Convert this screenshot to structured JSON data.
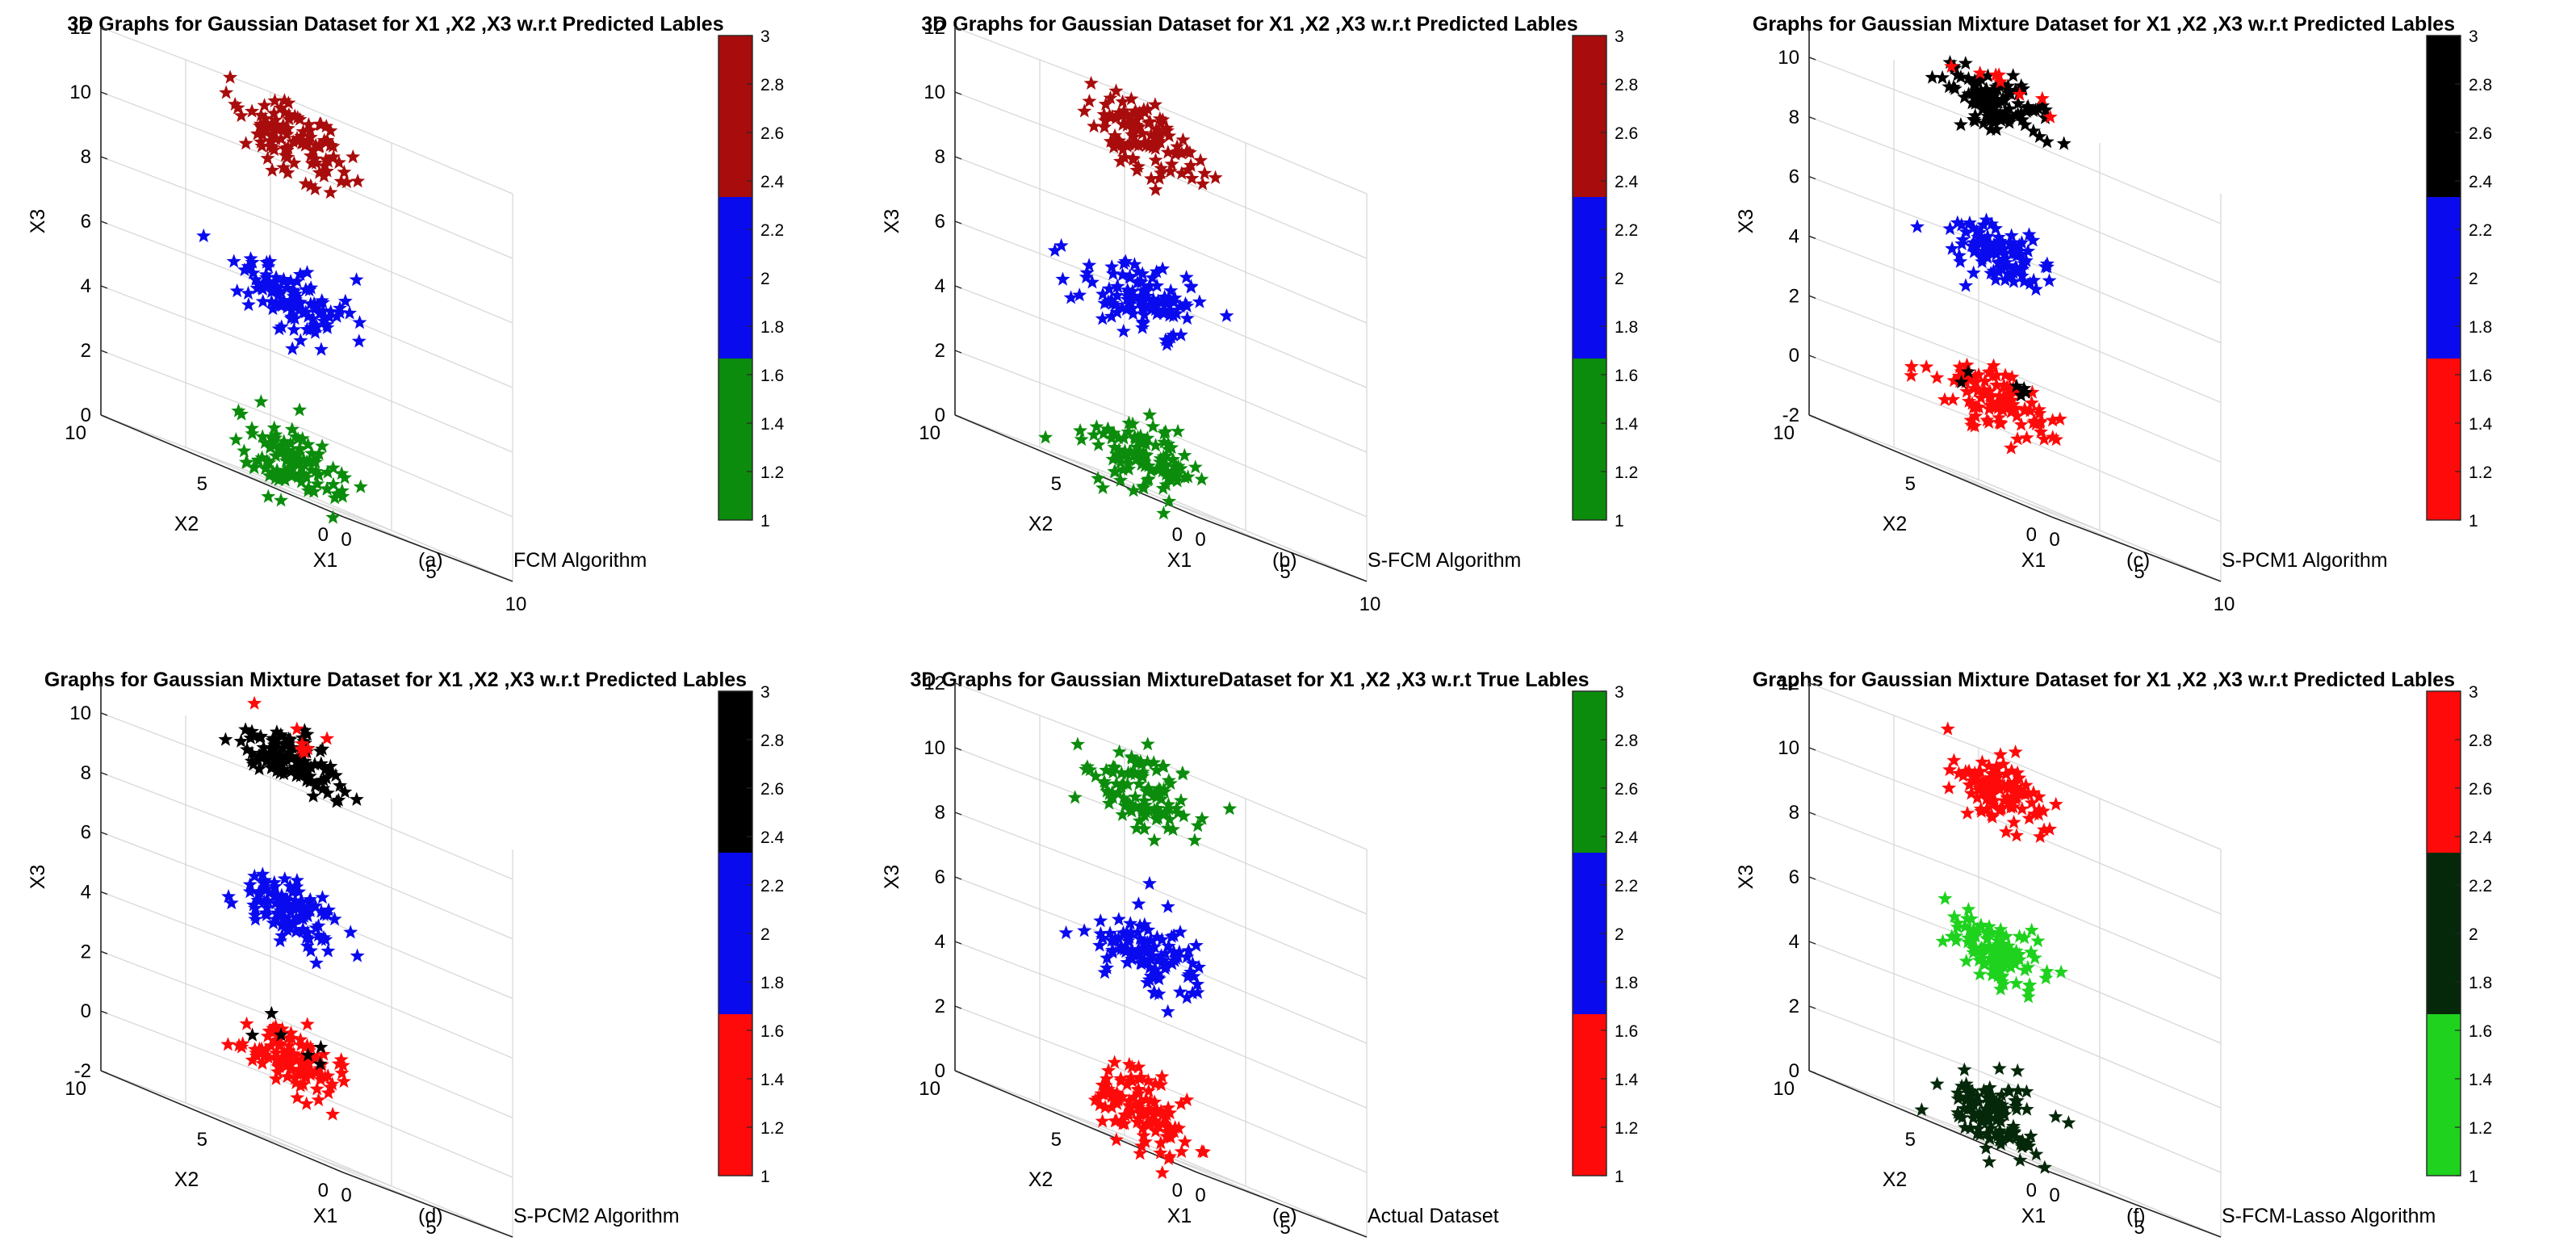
{
  "colors": {
    "green": "#0c8c0c",
    "blue": "#0a0aee",
    "darkred": "#a80c0c",
    "red": "#ff0a0a",
    "black": "#000000",
    "lime": "#1ed21e",
    "darkgreen": "#06280a"
  },
  "chart_data": [
    {
      "type": "scatter3d",
      "title": "3D Graphs for Gaussian Dataset for X1 ,X2 ,X3 w.r.t Predicted Lables",
      "caption": {
        "letter": "(a)",
        "text": "FCM    Algorithm"
      },
      "xlabel": "X1",
      "ylabel": "X2",
      "zlabel": "X3",
      "x_ticks": [
        "0",
        "5",
        "10"
      ],
      "y_ticks": [
        "0",
        "5",
        "10"
      ],
      "zlim": [
        0,
        12
      ],
      "z_ticks": [
        "0",
        "2",
        "4",
        "6",
        "8",
        "10",
        "12"
      ],
      "clusters": [
        {
          "label": 1,
          "color": "#0c8c0c",
          "center": [
            4,
            5,
            1
          ],
          "spread": [
            0.9,
            0.9,
            0.55
          ],
          "extras": []
        },
        {
          "label": 2,
          "color": "#0a0aee",
          "center": [
            4,
            5,
            6
          ],
          "spread": [
            0.9,
            0.9,
            0.55
          ],
          "extras": []
        },
        {
          "label": 3,
          "color": "#a80c0c",
          "center": [
            4,
            5,
            11
          ],
          "spread": [
            0.9,
            0.9,
            0.55
          ],
          "extras": []
        }
      ],
      "colorbar": {
        "segments": [
          "#0c8c0c",
          "#0a0aee",
          "#a80c0c"
        ],
        "ticks": [
          "1",
          "1.2",
          "1.4",
          "1.6",
          "1.8",
          "2",
          "2.2",
          "2.4",
          "2.6",
          "2.8",
          "3"
        ]
      }
    },
    {
      "type": "scatter3d",
      "title": "3D Graphs for Gaussian Dataset for X1 ,X2 ,X3 w.r.t Predicted Lables",
      "caption": {
        "letter": "(b)",
        "text": "S-FCM    Algorithm"
      },
      "xlabel": "X1",
      "ylabel": "X2",
      "zlabel": "X3",
      "x_ticks": [
        "0",
        "5",
        "10"
      ],
      "y_ticks": [
        "0",
        "5",
        "10"
      ],
      "zlim": [
        0,
        12
      ],
      "z_ticks": [
        "0",
        "2",
        "4",
        "6",
        "8",
        "10",
        "12"
      ],
      "clusters": [
        {
          "label": 1,
          "color": "#0c8c0c",
          "center": [
            4,
            5,
            1
          ],
          "spread": [
            0.9,
            0.9,
            0.55
          ],
          "extras": []
        },
        {
          "label": 2,
          "color": "#0a0aee",
          "center": [
            4,
            5,
            6
          ],
          "spread": [
            0.9,
            0.9,
            0.55
          ],
          "extras": []
        },
        {
          "label": 3,
          "color": "#a80c0c",
          "center": [
            4,
            5,
            11
          ],
          "spread": [
            0.9,
            0.9,
            0.55
          ],
          "extras": []
        }
      ],
      "colorbar": {
        "segments": [
          "#0c8c0c",
          "#0a0aee",
          "#a80c0c"
        ],
        "ticks": [
          "1",
          "1.2",
          "1.4",
          "1.6",
          "1.8",
          "2",
          "2.2",
          "2.4",
          "2.6",
          "2.8",
          "3"
        ]
      }
    },
    {
      "type": "scatter3d",
      "title": "Graphs for Gaussian Mixture Dataset for X1 ,X2 ,X3 w.r.t Predicted Lables",
      "caption": {
        "letter": "(c)",
        "text": "S-PCM1 Algorithm"
      },
      "xlabel": "X1",
      "ylabel": "X2",
      "zlabel": "X3",
      "x_ticks": [
        "0",
        "5",
        "10"
      ],
      "y_ticks": [
        "0",
        "5",
        "10"
      ],
      "zlim": [
        -2,
        11
      ],
      "z_ticks": [
        "-2",
        "0",
        "2",
        "4",
        "6",
        "8",
        "10"
      ],
      "clusters": [
        {
          "label": 1,
          "color": "#ff0a0a",
          "center": [
            4,
            5,
            1
          ],
          "spread": [
            0.9,
            0.9,
            0.5
          ],
          "extras": [
            {
              "color": "#000000",
              "count": 6,
              "dz": 0.6
            }
          ]
        },
        {
          "label": 2,
          "color": "#0a0aee",
          "center": [
            4,
            5,
            6
          ],
          "spread": [
            0.8,
            0.8,
            0.5
          ],
          "extras": []
        },
        {
          "label": 3,
          "color": "#000000",
          "center": [
            4,
            5,
            11
          ],
          "spread": [
            0.9,
            0.9,
            0.45
          ],
          "extras": [
            {
              "color": "#ff0a0a",
              "count": 8,
              "dz": 0.7
            }
          ]
        }
      ],
      "colorbar": {
        "segments": [
          "#ff0a0a",
          "#0a0aee",
          "#000000"
        ],
        "ticks": [
          "1",
          "1.2",
          "1.4",
          "1.6",
          "1.8",
          "2",
          "2.2",
          "2.4",
          "2.6",
          "2.8",
          "3"
        ]
      }
    },
    {
      "type": "scatter3d",
      "title": "Graphs for Gaussian Mixture Dataset for X1 ,X2 ,X3 w.r.t Predicted Lables",
      "caption": {
        "letter": "(d)",
        "text": "S-PCM2 Algorithm"
      },
      "xlabel": "X1",
      "ylabel": "X2",
      "zlabel": "X3",
      "x_ticks": [
        "0",
        "5",
        "10"
      ],
      "y_ticks": [
        "0",
        "5",
        "10"
      ],
      "zlim": [
        -2,
        11
      ],
      "z_ticks": [
        "-2",
        "0",
        "2",
        "4",
        "6",
        "8",
        "10"
      ],
      "clusters": [
        {
          "label": 1,
          "color": "#ff0a0a",
          "center": [
            4,
            5,
            1
          ],
          "spread": [
            0.9,
            0.9,
            0.5
          ],
          "extras": [
            {
              "color": "#000000",
              "count": 6,
              "dz": 0.6
            }
          ]
        },
        {
          "label": 2,
          "color": "#0a0aee",
          "center": [
            4,
            5,
            6
          ],
          "spread": [
            0.8,
            0.8,
            0.5
          ],
          "extras": []
        },
        {
          "label": 3,
          "color": "#000000",
          "center": [
            4,
            5,
            11
          ],
          "spread": [
            0.9,
            0.9,
            0.45
          ],
          "extras": [
            {
              "color": "#ff0a0a",
              "count": 8,
              "dz": 0.7
            }
          ]
        }
      ],
      "colorbar": {
        "segments": [
          "#ff0a0a",
          "#0a0aee",
          "#000000"
        ],
        "ticks": [
          "1",
          "1.2",
          "1.4",
          "1.6",
          "1.8",
          "2",
          "2.2",
          "2.4",
          "2.6",
          "2.8",
          "3"
        ]
      }
    },
    {
      "type": "scatter3d",
      "title": "3D Graphs for Gaussian MixtureDataset for X1 ,X2 ,X3 w.r.t True Lables",
      "caption": {
        "letter": "(e)",
        "text": "Actual Dataset"
      },
      "xlabel": "X1",
      "ylabel": "X2",
      "zlabel": "X3",
      "x_ticks": [
        "0",
        "5",
        "10"
      ],
      "y_ticks": [
        "0",
        "5",
        "10"
      ],
      "zlim": [
        0,
        12
      ],
      "z_ticks": [
        "0",
        "2",
        "4",
        "6",
        "8",
        "10",
        "12"
      ],
      "clusters": [
        {
          "label": 1,
          "color": "#ff0a0a",
          "center": [
            4,
            5,
            1
          ],
          "spread": [
            0.9,
            0.9,
            0.55
          ],
          "extras": []
        },
        {
          "label": 2,
          "color": "#0a0aee",
          "center": [
            4,
            5,
            6
          ],
          "spread": [
            0.9,
            0.9,
            0.55
          ],
          "extras": []
        },
        {
          "label": 3,
          "color": "#0c8c0c",
          "center": [
            4,
            5,
            11
          ],
          "spread": [
            0.9,
            0.9,
            0.55
          ],
          "extras": []
        }
      ],
      "colorbar": {
        "segments": [
          "#ff0a0a",
          "#0a0aee",
          "#0c8c0c"
        ],
        "ticks": [
          "1",
          "1.2",
          "1.4",
          "1.6",
          "1.8",
          "2",
          "2.2",
          "2.4",
          "2.6",
          "2.8",
          "3"
        ]
      }
    },
    {
      "type": "scatter3d",
      "title": "Graphs for Gaussian Mixture Dataset for X1 ,X2 ,X3 w.r.t Predicted Lables",
      "caption": {
        "letter": "(f)",
        "text": "S-FCM-Lasso Algorithm"
      },
      "xlabel": "X1",
      "ylabel": "X2",
      "zlabel": "X3",
      "x_ticks": [
        "0",
        "5",
        "10"
      ],
      "y_ticks": [
        "0",
        "5",
        "10"
      ],
      "zlim": [
        0,
        12
      ],
      "z_ticks": [
        "0",
        "2",
        "4",
        "6",
        "8",
        "10",
        "12"
      ],
      "clusters": [
        {
          "label": 1,
          "color": "#06280a",
          "center": [
            4,
            5,
            1
          ],
          "spread": [
            0.9,
            0.9,
            0.55
          ],
          "extras": []
        },
        {
          "label": 2,
          "color": "#1ed21e",
          "center": [
            4,
            5,
            6
          ],
          "spread": [
            0.9,
            0.9,
            0.55
          ],
          "extras": []
        },
        {
          "label": 3,
          "color": "#ff0a0a",
          "center": [
            4,
            5,
            11
          ],
          "spread": [
            0.9,
            0.9,
            0.55
          ],
          "extras": []
        }
      ],
      "colorbar": {
        "segments": [
          "#1ed21e",
          "#06280a",
          "#ff0a0a"
        ],
        "ticks": [
          "1",
          "1.2",
          "1.4",
          "1.6",
          "1.8",
          "2",
          "2.2",
          "2.4",
          "2.6",
          "2.8",
          "3"
        ]
      }
    }
  ]
}
